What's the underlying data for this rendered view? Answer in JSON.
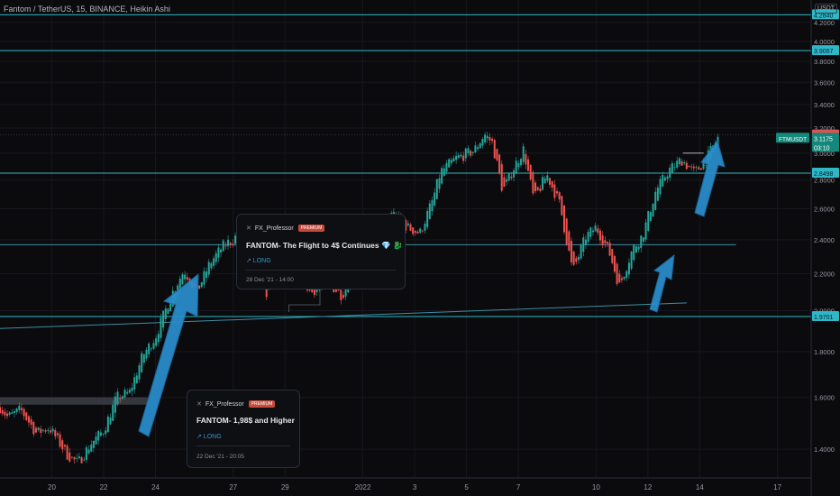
{
  "header": {
    "title": "Fantom / TetherUS, 15, BINANCE, Heikin Ashi",
    "currency": "USDT"
  },
  "colors": {
    "background": "#0b0b0e",
    "up": "#26a69a",
    "down": "#ef5350",
    "level_line": "#2fb7c8",
    "arrow": "#2a8fcf",
    "price_tag": "#e05252"
  },
  "ideas": [
    {
      "author": "FX_Professor",
      "badge": "PREMIUM",
      "headline": "FANTOM- The Flight to 4$ Continues 💎 🐉",
      "direction": "↗ LONG",
      "date": "28 Dec '21 - 14:00"
    },
    {
      "author": "FX_Professor",
      "badge": "PREMIUM",
      "headline": "FANTOM- 1,98$ and Higher",
      "direction": "↗ LONG",
      "date": "22 Dec '21 - 20:05"
    }
  ],
  "chart_data": {
    "type": "candlestick",
    "title": "Fantom / TetherUS, 15, BINANCE, Heikin Ashi",
    "currency": "USDT",
    "y_scale": "log",
    "ylim": [
      1.3,
      4.45
    ],
    "y_ticks": [
      1.4,
      1.6,
      1.8,
      2.0,
      2.2,
      2.4,
      2.6,
      2.8,
      3.0,
      3.2,
      3.4,
      3.6,
      3.8,
      4.0,
      4.2
    ],
    "y_tick_labels": [
      "1.4000",
      "1.6000",
      "1.8000",
      "2.0000",
      "2.2000",
      "2.4000",
      "2.6000",
      "2.8000",
      "3.0000",
      "3.2000",
      "3.4000",
      "3.6000",
      "3.8000",
      "4.0000",
      "4.2000"
    ],
    "x_ticks": [
      {
        "x": 0.0,
        "label": "20"
      },
      {
        "x": 2.0,
        "label": "22"
      },
      {
        "x": 4.0,
        "label": "24"
      },
      {
        "x": 7.0,
        "label": "27"
      },
      {
        "x": 9.0,
        "label": "29"
      },
      {
        "x": 12.0,
        "label": "2022"
      },
      {
        "x": 14.0,
        "label": "3"
      },
      {
        "x": 16.0,
        "label": "5"
      },
      {
        "x": 18.0,
        "label": "7"
      },
      {
        "x": 21.0,
        "label": "10"
      },
      {
        "x": 23.0,
        "label": "12"
      },
      {
        "x": 25.0,
        "label": "14"
      },
      {
        "x": 28.0,
        "label": "17"
      }
    ],
    "xlim": [
      -2.0,
      29.3
    ],
    "horizontal_levels": [
      {
        "price": 4.284,
        "label": "4.2840"
      },
      {
        "price": 3.9067,
        "label": "3.9067"
      },
      {
        "price": 2.8498,
        "label": "2.8498"
      },
      {
        "price": 1.9701,
        "label": "1.9701"
      }
    ],
    "secondary_levels": [
      {
        "price": 2.37,
        "x_start": -2.0,
        "x_end": 26.4
      }
    ],
    "trendline": {
      "x0": -2.0,
      "y0": 1.91,
      "x1": 24.5,
      "y1": 2.04
    },
    "support_box": {
      "x0": -2.0,
      "x1": 3.7,
      "y0": 1.57,
      "y1": 1.6
    },
    "last_price": {
      "price": 3.1441,
      "label": "3.1441"
    },
    "current_price": {
      "price": 3.1175,
      "label": "3.1175",
      "countdown": "03:10",
      "symbol": "FTMUSDT"
    },
    "mark_line_price": 3.0,
    "mark_line_range": [
      24.35,
      25.15
    ],
    "anchors": [
      {
        "x": -2.0,
        "y": 1.56
      },
      {
        "x": -1.7,
        "y": 1.52
      },
      {
        "x": -1.2,
        "y": 1.55
      },
      {
        "x": -0.6,
        "y": 1.46
      },
      {
        "x": -0.1,
        "y": 1.48
      },
      {
        "x": 0.6,
        "y": 1.38
      },
      {
        "x": 1.0,
        "y": 1.35
      },
      {
        "x": 1.5,
        "y": 1.42
      },
      {
        "x": 2.0,
        "y": 1.47
      },
      {
        "x": 2.5,
        "y": 1.6
      },
      {
        "x": 3.0,
        "y": 1.62
      },
      {
        "x": 3.5,
        "y": 1.78
      },
      {
        "x": 4.0,
        "y": 1.87
      },
      {
        "x": 4.6,
        "y": 2.08
      },
      {
        "x": 5.1,
        "y": 2.22
      },
      {
        "x": 5.6,
        "y": 2.1
      },
      {
        "x": 6.1,
        "y": 2.26
      },
      {
        "x": 6.6,
        "y": 2.36
      },
      {
        "x": 7.2,
        "y": 2.43
      },
      {
        "x": 7.7,
        "y": 2.3
      },
      {
        "x": 8.3,
        "y": 2.09
      },
      {
        "x": 8.9,
        "y": 2.3
      },
      {
        "x": 9.5,
        "y": 2.22
      },
      {
        "x": 10.0,
        "y": 2.09
      },
      {
        "x": 10.5,
        "y": 2.17
      },
      {
        "x": 11.2,
        "y": 2.08
      },
      {
        "x": 11.9,
        "y": 2.32
      },
      {
        "x": 12.5,
        "y": 2.34
      },
      {
        "x": 13.1,
        "y": 2.58
      },
      {
        "x": 13.7,
        "y": 2.48
      },
      {
        "x": 14.2,
        "y": 2.44
      },
      {
        "x": 14.7,
        "y": 2.66
      },
      {
        "x": 15.0,
        "y": 2.86
      },
      {
        "x": 15.6,
        "y": 2.96
      },
      {
        "x": 16.3,
        "y": 3.02
      },
      {
        "x": 16.7,
        "y": 3.15
      },
      {
        "x": 17.0,
        "y": 3.08
      },
      {
        "x": 17.4,
        "y": 2.72
      },
      {
        "x": 17.8,
        "y": 2.88
      },
      {
        "x": 18.2,
        "y": 3.03
      },
      {
        "x": 18.6,
        "y": 2.66
      },
      {
        "x": 19.1,
        "y": 2.84
      },
      {
        "x": 19.6,
        "y": 2.63
      },
      {
        "x": 20.1,
        "y": 2.21
      },
      {
        "x": 20.6,
        "y": 2.42
      },
      {
        "x": 21.0,
        "y": 2.48
      },
      {
        "x": 21.5,
        "y": 2.33
      },
      {
        "x": 21.9,
        "y": 2.13
      },
      {
        "x": 22.4,
        "y": 2.34
      },
      {
        "x": 22.8,
        "y": 2.43
      },
      {
        "x": 23.3,
        "y": 2.72
      },
      {
        "x": 23.8,
        "y": 2.87
      },
      {
        "x": 24.3,
        "y": 2.95
      },
      {
        "x": 24.8,
        "y": 2.85
      },
      {
        "x": 25.3,
        "y": 2.97
      },
      {
        "x": 25.7,
        "y": 3.12
      }
    ]
  }
}
